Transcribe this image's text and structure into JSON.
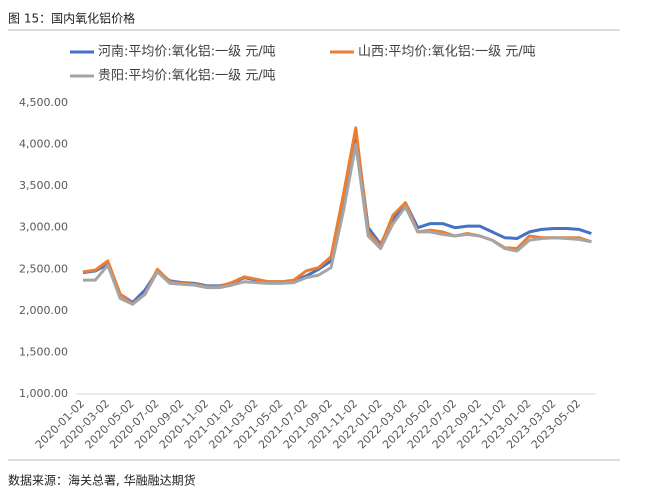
{
  "header": {
    "title": "图 15：国内氧化铝价格"
  },
  "chart_data": {
    "type": "line",
    "categories": [
      "2020-01-02",
      null,
      "2020-03-02",
      null,
      "2020-05-02",
      null,
      "2020-07-02",
      null,
      "2020-09-02",
      null,
      "2020-11-02",
      null,
      "2021-01-02",
      null,
      "2021-03-02",
      null,
      "2021-05-02",
      null,
      "2021-07-02",
      null,
      "2021-09-02",
      null,
      "2021-11-02",
      null,
      "2022-01-02",
      null,
      "2022-03-02",
      null,
      "2022-05-02",
      null,
      "2022-07-02",
      null,
      "2022-09-02",
      null,
      "2022-11-02",
      null,
      "2023-01-02",
      null,
      "2023-03-02",
      null,
      "2023-05-02",
      null
    ],
    "series": [
      {
        "name": "河南:平均价:氧化铝:一级 元/吨",
        "color": "#4472c4",
        "values": [
          2460,
          2480,
          2560,
          2200,
          2100,
          2250,
          2480,
          2360,
          2340,
          2330,
          2300,
          2300,
          2330,
          2400,
          2370,
          2350,
          2350,
          2360,
          2420,
          2500,
          2600,
          3300,
          4150,
          3000,
          2800,
          3100,
          3300,
          3000,
          3050,
          3050,
          3000,
          3020,
          3020,
          2950,
          2880,
          2870,
          2950,
          2980,
          2990,
          2990,
          2980,
          2930
        ]
      },
      {
        "name": "山西:平均价:氧化铝:一级 元/吨",
        "color": "#ed7d31",
        "values": [
          2470,
          2490,
          2600,
          2200,
          2080,
          2200,
          2500,
          2350,
          2330,
          2320,
          2290,
          2290,
          2340,
          2410,
          2380,
          2350,
          2350,
          2370,
          2480,
          2520,
          2650,
          3400,
          4200,
          2950,
          2780,
          3150,
          3300,
          2950,
          2970,
          2950,
          2900,
          2930,
          2900,
          2850,
          2760,
          2750,
          2900,
          2880,
          2880,
          2880,
          2880,
          2830
        ]
      },
      {
        "name": "贵阳:平均价:氧化铝:一级 元/吨",
        "color": "#a5a5a5",
        "values": [
          2370,
          2370,
          2550,
          2150,
          2080,
          2200,
          2470,
          2330,
          2320,
          2310,
          2280,
          2280,
          2310,
          2350,
          2340,
          2330,
          2330,
          2340,
          2400,
          2430,
          2520,
          3200,
          4000,
          2900,
          2750,
          3050,
          3250,
          2950,
          2950,
          2920,
          2900,
          2920,
          2900,
          2850,
          2750,
          2720,
          2850,
          2870,
          2880,
          2870,
          2860,
          2830
        ]
      }
    ],
    "ylim": [
      1000,
      4500
    ],
    "yticks": [
      {
        "value": 1000,
        "label": "1,000.00"
      },
      {
        "value": 1500,
        "label": "1,500.00"
      },
      {
        "value": 2000,
        "label": "2,000.00"
      },
      {
        "value": 2500,
        "label": "2,500.00"
      },
      {
        "value": 3000,
        "label": "3,000.00"
      },
      {
        "value": 3500,
        "label": "3,500.00"
      },
      {
        "value": 4000,
        "label": "4,000.00"
      },
      {
        "value": 4500,
        "label": "4,500.00"
      }
    ],
    "grid": false
  },
  "footer": {
    "source": "数据来源：海关总署, 华融融达期货"
  }
}
